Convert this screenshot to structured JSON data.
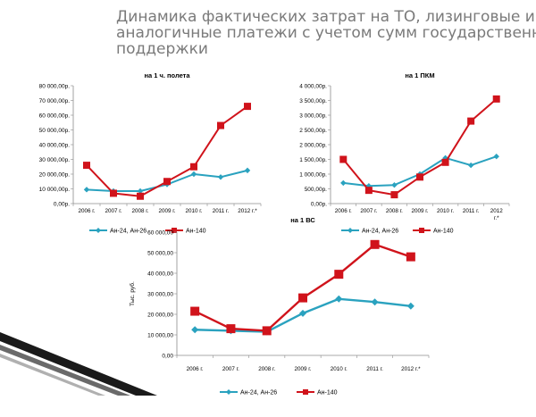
{
  "slide": {
    "title_lines": [
      "Динамика фактических затрат на ТО,  лизинговые и",
      "аналогичные платежи   с учетом сумм государственной",
      "поддержки"
    ]
  },
  "colors": {
    "series_a": "#2aa2bf",
    "series_b": "#d0131b",
    "axis": "#8c8c8c",
    "text": "#000000"
  },
  "chart_data": [
    {
      "type": "line",
      "title": "на 1 ч. полета",
      "categories": [
        "2006 г.",
        "2007 г.",
        "2008 г.",
        "2009 г.",
        "2010 г.",
        "2011 г.",
        "2012 г.*"
      ],
      "y_ticks": [
        "0,00р.",
        "10 000,00р.",
        "20 000,00р.",
        "30 000,00р.",
        "40 000,00р.",
        "50 000,00р.",
        "60 000,00р.",
        "70 000,00р.",
        "80 000,00р."
      ],
      "ylim": [
        0,
        80000
      ],
      "grid": false,
      "legend": "bottom",
      "series": [
        {
          "name": "Ан-24, Ан-26",
          "values": [
            9500,
            8500,
            8500,
            13000,
            20000,
            18000,
            22500
          ]
        },
        {
          "name": "Ан-140",
          "values": [
            26000,
            7000,
            5000,
            15000,
            25000,
            53000,
            66000
          ]
        }
      ]
    },
    {
      "type": "line",
      "title": "на  1 ПКМ",
      "categories": [
        "2006 г.",
        "2007 г.",
        "2008 г.",
        "2009 г.",
        "2010 г.",
        "2011 г.",
        "2012 г.*"
      ],
      "y_ticks": [
        "0,00р.",
        "500,00р.",
        "1 000,00р.",
        "1 500,00р.",
        "2 000,00р.",
        "2 500,00р.",
        "3 000,00р.",
        "3 500,00р.",
        "4 000,00р."
      ],
      "ylim": [
        0,
        4000
      ],
      "grid": false,
      "legend": "bottom",
      "series": [
        {
          "name": "Ан-24, Ан-26",
          "values": [
            700,
            600,
            630,
            1000,
            1550,
            1300,
            1600
          ]
        },
        {
          "name": "Ан-140",
          "values": [
            1500,
            450,
            300,
            900,
            1400,
            2800,
            3550
          ]
        }
      ]
    },
    {
      "type": "line",
      "title": "на 1 ВС",
      "ylabel": "Тыс. руб.",
      "categories": [
        "2006 г.",
        "2007 г.",
        "2008 г.",
        "2009 г.",
        "2010 г.",
        "2011 г.",
        "2012 г.*"
      ],
      "y_ticks": [
        "0,00",
        "10 000,00",
        "20 000,00",
        "30 000,00",
        "40 000,00",
        "50 000,00",
        "60 000,00"
      ],
      "ylim": [
        0,
        60000
      ],
      "grid": false,
      "legend": "bottom",
      "series": [
        {
          "name": "Ан-24, Ан-26",
          "values": [
            12500,
            12000,
            11500,
            20500,
            27500,
            26000,
            24000
          ]
        },
        {
          "name": "Ан-140",
          "values": [
            21500,
            13000,
            12000,
            28000,
            39500,
            54000,
            48000
          ]
        }
      ]
    }
  ]
}
